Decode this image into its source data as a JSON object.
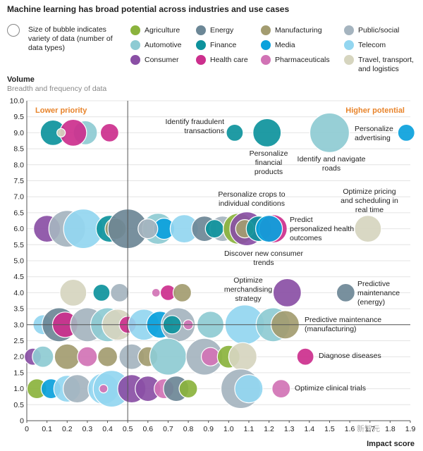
{
  "title": "Machine learning has broad potential across industries and use cases",
  "size_legend": "Size of bubble indicates variety of data (number of data types)",
  "legend": [
    {
      "name": "Agriculture",
      "color": "#8bb33d"
    },
    {
      "name": "Energy",
      "color": "#6c8796"
    },
    {
      "name": "Manufacturing",
      "color": "#a39c70"
    },
    {
      "name": "Public/social",
      "color": "#a5b4bf"
    },
    {
      "name": "Automotive",
      "color": "#8ecbd3"
    },
    {
      "name": "Finance",
      "color": "#0d929c"
    },
    {
      "name": "Media",
      "color": "#0aa1dc"
    },
    {
      "name": "Telecom",
      "color": "#93d6f0"
    },
    {
      "name": "Consumer",
      "color": "#8a4fa5"
    },
    {
      "name": "Health care",
      "color": "#cc2f8d"
    },
    {
      "name": "Pharmaceuticals",
      "color": "#d173b5"
    },
    {
      "name": "Travel, transport, and logistics",
      "color": "#d6d5bf"
    }
  ],
  "watermark": "新智元",
  "chart_data": {
    "type": "scatter",
    "subtype": "bubble",
    "xlabel": "Impact score",
    "ylabel": "Volume",
    "ysublabel": "Breadth and frequency of data",
    "xlim": [
      0,
      1.9
    ],
    "ylim": [
      0,
      10
    ],
    "xticks": [
      "0",
      "0.1",
      "0.2",
      "0.3",
      "0.4",
      "0.5",
      "0.6",
      "0.7",
      "0.8",
      "0.9",
      "1.0",
      "1.1",
      "1.2",
      "1.3",
      "1.4",
      "1.5",
      "1.6",
      "1.7",
      "1.8",
      "1.9"
    ],
    "yticks": [
      "0",
      "0.5",
      "1.0",
      "1.5",
      "2.0",
      "2.5",
      "3.0",
      "3.5",
      "4.0",
      "4.5",
      "5.0",
      "5.5",
      "6.0",
      "6.5",
      "7.0",
      "7.5",
      "8.0",
      "8.5",
      "9.0",
      "9.5",
      "10.0"
    ],
    "reference_lines": {
      "x": 0.5,
      "y": 3.0
    },
    "quadrant_labels": {
      "left": "Lower priority",
      "right": "Higher potential"
    },
    "points": [
      {
        "x": 0.13,
        "y": 9.0,
        "r": 18,
        "industry": "Finance"
      },
      {
        "x": 0.29,
        "y": 9.0,
        "r": 17,
        "industry": "Automotive"
      },
      {
        "x": 0.23,
        "y": 9.0,
        "r": 19,
        "industry": "Health care"
      },
      {
        "x": 0.17,
        "y": 9.0,
        "r": 6,
        "industry": "Travel, transport, and logistics"
      },
      {
        "x": 0.41,
        "y": 9.0,
        "r": 13,
        "industry": "Health care"
      },
      {
        "x": 1.03,
        "y": 9.0,
        "r": 12,
        "industry": "Finance",
        "label": "Identify fraudulent transactions"
      },
      {
        "x": 1.19,
        "y": 9.0,
        "r": 20,
        "industry": "Finance",
        "label": "Personalize financial products"
      },
      {
        "x": 1.5,
        "y": 9.0,
        "r": 28,
        "industry": "Automotive",
        "label": "Identify and navigate roads"
      },
      {
        "x": 1.88,
        "y": 9.0,
        "r": 12,
        "industry": "Media",
        "label": "Personalize advertising"
      },
      {
        "x": 0.1,
        "y": 6.0,
        "r": 19,
        "industry": "Consumer"
      },
      {
        "x": 0.2,
        "y": 6.0,
        "r": 26,
        "industry": "Public/social"
      },
      {
        "x": 0.28,
        "y": 6.0,
        "r": 28,
        "industry": "Telecom"
      },
      {
        "x": 0.41,
        "y": 6.0,
        "r": 19,
        "industry": "Finance"
      },
      {
        "x": 0.44,
        "y": 6.0,
        "r": 15,
        "industry": "Manufacturing"
      },
      {
        "x": 0.5,
        "y": 6.0,
        "r": 28,
        "industry": "Energy"
      },
      {
        "x": 0.65,
        "y": 6.0,
        "r": 22,
        "industry": "Automotive"
      },
      {
        "x": 0.68,
        "y": 6.0,
        "r": 15,
        "industry": "Media"
      },
      {
        "x": 0.6,
        "y": 6.0,
        "r": 14,
        "industry": "Public/social"
      },
      {
        "x": 0.78,
        "y": 6.0,
        "r": 20,
        "industry": "Telecom"
      },
      {
        "x": 0.88,
        "y": 6.0,
        "r": 18,
        "industry": "Energy"
      },
      {
        "x": 0.97,
        "y": 6.0,
        "r": 18,
        "industry": "Public/social"
      },
      {
        "x": 0.93,
        "y": 6.0,
        "r": 13,
        "industry": "Finance"
      },
      {
        "x": 1.05,
        "y": 6.0,
        "r": 22,
        "industry": "Agriculture",
        "label": "Personalize crops to individual conditions"
      },
      {
        "x": 1.09,
        "y": 6.0,
        "r": 24,
        "industry": "Consumer",
        "label": "Discover new consumer trends"
      },
      {
        "x": 1.08,
        "y": 6.0,
        "r": 13,
        "industry": "Manufacturing"
      },
      {
        "x": 1.15,
        "y": 6.0,
        "r": 18,
        "industry": "Finance"
      },
      {
        "x": 1.22,
        "y": 6.0,
        "r": 20,
        "industry": "Health care",
        "label": "Predict personalized health outcomes"
      },
      {
        "x": 1.2,
        "y": 6.0,
        "r": 19,
        "industry": "Media"
      },
      {
        "x": 1.69,
        "y": 6.0,
        "r": 19,
        "industry": "Travel, transport, and logistics",
        "label": "Optimize pricing and scheduling in real time"
      },
      {
        "x": 0.23,
        "y": 4.0,
        "r": 19,
        "industry": "Travel, transport, and logistics"
      },
      {
        "x": 0.37,
        "y": 4.0,
        "r": 12,
        "industry": "Finance"
      },
      {
        "x": 0.46,
        "y": 4.0,
        "r": 13,
        "industry": "Public/social"
      },
      {
        "x": 0.64,
        "y": 4.0,
        "r": 6,
        "industry": "Pharmaceuticals"
      },
      {
        "x": 0.7,
        "y": 4.0,
        "r": 11,
        "industry": "Health care"
      },
      {
        "x": 0.77,
        "y": 4.0,
        "r": 13,
        "industry": "Manufacturing"
      },
      {
        "x": 1.29,
        "y": 4.0,
        "r": 20,
        "industry": "Consumer",
        "label": "Optimize merchandising strategy"
      },
      {
        "x": 1.58,
        "y": 4.0,
        "r": 13,
        "industry": "Energy",
        "label": "Predictive maintenance (energy)"
      },
      {
        "x": 0.08,
        "y": 3.0,
        "r": 14,
        "industry": "Telecom"
      },
      {
        "x": 0.16,
        "y": 3.0,
        "r": 24,
        "industry": "Energy"
      },
      {
        "x": 0.19,
        "y": 3.0,
        "r": 18,
        "industry": "Health care"
      },
      {
        "x": 0.3,
        "y": 3.0,
        "r": 24,
        "industry": "Public/social"
      },
      {
        "x": 0.4,
        "y": 3.0,
        "r": 24,
        "industry": "Automotive"
      },
      {
        "x": 0.45,
        "y": 3.0,
        "r": 22,
        "industry": "Travel, transport, and logistics"
      },
      {
        "x": 0.5,
        "y": 3.0,
        "r": 12,
        "industry": "Health care"
      },
      {
        "x": 0.58,
        "y": 3.0,
        "r": 22,
        "industry": "Telecom"
      },
      {
        "x": 0.66,
        "y": 3.0,
        "r": 19,
        "industry": "Media"
      },
      {
        "x": 0.75,
        "y": 3.0,
        "r": 24,
        "industry": "Public/social"
      },
      {
        "x": 0.72,
        "y": 3.0,
        "r": 13,
        "industry": "Finance"
      },
      {
        "x": 0.8,
        "y": 3.0,
        "r": 7,
        "industry": "Pharmaceuticals"
      },
      {
        "x": 0.91,
        "y": 3.0,
        "r": 19,
        "industry": "Automotive"
      },
      {
        "x": 1.08,
        "y": 3.0,
        "r": 28,
        "industry": "Telecom"
      },
      {
        "x": 1.22,
        "y": 3.0,
        "r": 24,
        "industry": "Automotive"
      },
      {
        "x": 1.28,
        "y": 3.0,
        "r": 20,
        "industry": "Manufacturing",
        "label": "Predictive maintenance (manufacturing)"
      },
      {
        "x": 0.03,
        "y": 2.0,
        "r": 12,
        "industry": "Consumer"
      },
      {
        "x": 0.08,
        "y": 2.0,
        "r": 15,
        "industry": "Automotive"
      },
      {
        "x": 0.2,
        "y": 2.0,
        "r": 18,
        "industry": "Manufacturing"
      },
      {
        "x": 0.3,
        "y": 2.0,
        "r": 14,
        "industry": "Pharmaceuticals"
      },
      {
        "x": 0.4,
        "y": 2.0,
        "r": 14,
        "industry": "Manufacturing"
      },
      {
        "x": 0.52,
        "y": 2.0,
        "r": 18,
        "industry": "Public/social"
      },
      {
        "x": 0.6,
        "y": 2.0,
        "r": 14,
        "industry": "Manufacturing"
      },
      {
        "x": 0.7,
        "y": 2.0,
        "r": 26,
        "industry": "Automotive"
      },
      {
        "x": 0.88,
        "y": 2.0,
        "r": 26,
        "industry": "Public/social"
      },
      {
        "x": 0.91,
        "y": 2.0,
        "r": 13,
        "industry": "Pharmaceuticals"
      },
      {
        "x": 1.0,
        "y": 2.0,
        "r": 16,
        "industry": "Agriculture"
      },
      {
        "x": 1.07,
        "y": 2.0,
        "r": 20,
        "industry": "Travel, transport, and logistics"
      },
      {
        "x": 1.38,
        "y": 2.0,
        "r": 12,
        "industry": "Health care",
        "label": "Diagnose diseases"
      },
      {
        "x": 0.05,
        "y": 1.0,
        "r": 14,
        "industry": "Agriculture"
      },
      {
        "x": 0.12,
        "y": 1.0,
        "r": 14,
        "industry": "Media"
      },
      {
        "x": 0.2,
        "y": 1.0,
        "r": 19,
        "industry": "Telecom"
      },
      {
        "x": 0.25,
        "y": 1.0,
        "r": 20,
        "industry": "Public/social"
      },
      {
        "x": 0.38,
        "y": 1.0,
        "r": 22,
        "industry": "Telecom"
      },
      {
        "x": 0.42,
        "y": 1.0,
        "r": 26,
        "industry": "Telecom"
      },
      {
        "x": 0.38,
        "y": 1.0,
        "r": 6,
        "industry": "Pharmaceuticals"
      },
      {
        "x": 0.52,
        "y": 1.0,
        "r": 20,
        "industry": "Consumer"
      },
      {
        "x": 0.6,
        "y": 1.0,
        "r": 18,
        "industry": "Consumer"
      },
      {
        "x": 0.68,
        "y": 1.0,
        "r": 14,
        "industry": "Pharmaceuticals"
      },
      {
        "x": 0.74,
        "y": 1.0,
        "r": 18,
        "industry": "Energy"
      },
      {
        "x": 0.8,
        "y": 1.0,
        "r": 13,
        "industry": "Agriculture"
      },
      {
        "x": 1.06,
        "y": 1.0,
        "r": 28,
        "industry": "Public/social"
      },
      {
        "x": 1.1,
        "y": 1.0,
        "r": 20,
        "industry": "Telecom"
      },
      {
        "x": 1.26,
        "y": 1.0,
        "r": 13,
        "industry": "Pharmaceuticals",
        "label": "Optimize clinical trials"
      }
    ]
  }
}
